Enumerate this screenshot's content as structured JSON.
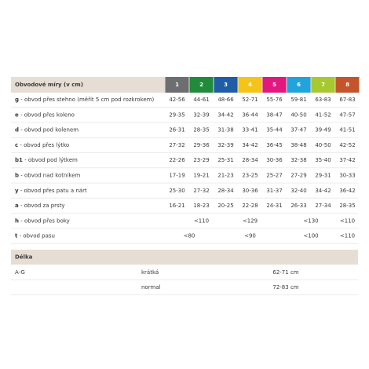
{
  "table": {
    "header": "Obvodové míry (v cm)",
    "sizes": [
      "1",
      "2",
      "3",
      "4",
      "5",
      "6",
      "7",
      "8"
    ],
    "size_colors": [
      "#6d6e70",
      "#1f8b3b",
      "#1f5da6",
      "#f4c41a",
      "#e2187f",
      "#21a3dc",
      "#a8c82f",
      "#c4542b"
    ],
    "rows": [
      {
        "code": "g",
        "label": " - obvod přes stehno (měřit 5 cm pod rozkrokem)",
        "values": [
          "42-56",
          "44-61",
          "48-66",
          "52-71",
          "55-76",
          "59-81",
          "63-83",
          "67-83"
        ]
      },
      {
        "code": "e",
        "label": " - obvod přes koleno",
        "values": [
          "29-35",
          "32-39",
          "34-42",
          "36-44",
          "38-47",
          "40-50",
          "41-52",
          "47-57"
        ]
      },
      {
        "code": "d",
        "label": " - obvod pod kolenem",
        "values": [
          "26-31",
          "28-35",
          "31-38",
          "33-41",
          "35-44",
          "37-47",
          "39-49",
          "41-51"
        ]
      },
      {
        "code": "c",
        "label": " - obvod přes lýtko",
        "values": [
          "27-32",
          "29-36",
          "32-39",
          "34-42",
          "36-45",
          "38-48",
          "40-50",
          "42-52"
        ]
      },
      {
        "code": "b1",
        "label": " - obvod pod lýtkem",
        "values": [
          "22-26",
          "23-29",
          "25-31",
          "28-34",
          "30-36",
          "32-38",
          "35-40",
          "37-42"
        ]
      },
      {
        "code": "b",
        "label": " - obvod nad kotníkem",
        "values": [
          "17-19",
          "19-21",
          "21-23",
          "23-25",
          "25-27",
          "27-29",
          "29-31",
          "30-33"
        ]
      },
      {
        "code": "y",
        "label": " - obvod přes patu a nárt",
        "values": [
          "25-30",
          "27-32",
          "28-34",
          "30-36",
          "31-37",
          "32-40",
          "34-42",
          "36-42"
        ]
      },
      {
        "code": "a",
        "label": " - obvod za prsty",
        "values": [
          "16-21",
          "18-23",
          "20-25",
          "22-28",
          "24-31",
          "26-33",
          "27-34",
          "28-35"
        ]
      },
      {
        "code": "h",
        "label": " - obvod přes boky",
        "values": [
          "<110",
          "<129",
          "<130",
          "<110"
        ]
      },
      {
        "code": "t",
        "label": " - obvod pasu",
        "values": [
          "<80",
          "<90",
          "<100",
          "<110"
        ]
      }
    ],
    "length_header": "Délka",
    "length_rows": [
      {
        "group": "A-G",
        "type": "krátká",
        "value": "62-71 cm"
      },
      {
        "group": null,
        "type": "normal",
        "value": "72-83 cm"
      }
    ]
  }
}
